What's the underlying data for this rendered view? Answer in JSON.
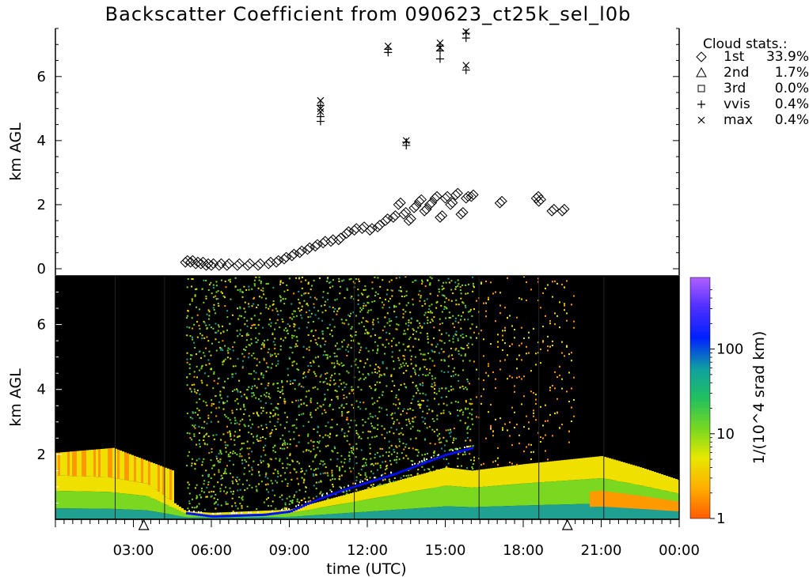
{
  "figure": {
    "title": "Backscatter Coefficient from 090623_ct25k_sel_l0b",
    "xlabel": "time (UTC)",
    "ylabel_top": "km AGL",
    "ylabel_bottom": "km AGL",
    "colorbar_label": "1/(10^4 srad km)",
    "x_tick_labels": [
      "03:00",
      "06:00",
      "09:00",
      "12:00",
      "15:00",
      "18:00",
      "21:00",
      "00:00"
    ],
    "y_tick_labels": [
      "0",
      "2",
      "4",
      "6"
    ],
    "y_tick_labels_bottom": [
      "2",
      "4",
      "6"
    ],
    "colorbar_tick_labels": [
      "1",
      "10",
      "100"
    ]
  },
  "legend": {
    "title": "Cloud stats.:",
    "entries": [
      {
        "symbol": "diamond-icon",
        "name": "1st",
        "value": "33.9%"
      },
      {
        "symbol": "triangle-icon",
        "name": "2nd",
        "value": "1.7%"
      },
      {
        "symbol": "square-icon",
        "name": "3rd",
        "value": "0.0%"
      },
      {
        "symbol": "plus-icon",
        "name": "vvis",
        "value": "0.4%"
      },
      {
        "symbol": "cross-icon",
        "name": "max",
        "value": "0.4%"
      }
    ]
  },
  "chart_data": [
    {
      "type": "scatter",
      "title": "Backscatter Coefficient from 090623_ct25k_sel_l0b",
      "xlabel": "",
      "ylabel": "km AGL",
      "x_unit": "hours UTC",
      "xlim": [
        0,
        24
      ],
      "ylim": [
        0,
        7.5
      ],
      "series": [
        {
          "name": "1st",
          "marker": "diamond",
          "x": [
            5.0,
            5.2,
            5.4,
            5.6,
            5.8,
            6.0,
            6.3,
            6.6,
            7.0,
            7.4,
            7.8,
            8.2,
            8.5,
            8.8,
            9.1,
            9.4,
            9.7,
            10.0,
            10.3,
            10.6,
            10.9,
            11.2,
            11.5,
            11.8,
            12.1,
            12.4,
            12.7,
            13.0,
            13.2,
            13.4,
            13.6,
            13.8,
            14.0,
            14.2,
            14.4,
            14.6,
            14.8,
            15.0,
            15.2,
            15.4,
            15.6,
            15.8,
            16.0,
            17.1,
            18.5,
            18.6,
            19.1,
            19.5
          ],
          "y": [
            0.2,
            0.2,
            0.15,
            0.15,
            0.1,
            0.1,
            0.1,
            0.1,
            0.1,
            0.1,
            0.1,
            0.15,
            0.2,
            0.3,
            0.4,
            0.5,
            0.6,
            0.7,
            0.8,
            0.85,
            0.9,
            1.1,
            1.2,
            1.25,
            1.2,
            1.3,
            1.5,
            1.6,
            2.0,
            1.7,
            1.5,
            1.9,
            2.1,
            1.8,
            2.0,
            2.2,
            1.6,
            2.2,
            2.0,
            2.3,
            1.7,
            2.2,
            2.25,
            2.05,
            2.2,
            2.1,
            1.8,
            1.8
          ]
        },
        {
          "name": "2nd",
          "marker": "triangle",
          "x": [],
          "y": []
        },
        {
          "name": "3rd",
          "marker": "square",
          "x": [],
          "y": []
        },
        {
          "name": "vvis",
          "marker": "plus",
          "x": [
            10.2,
            10.2,
            10.2,
            12.8,
            12.8,
            13.5,
            13.5,
            14.8,
            14.8,
            14.8,
            15.8,
            15.8,
            15.8
          ],
          "y": [
            4.6,
            4.75,
            5.1,
            6.75,
            6.85,
            3.85,
            3.95,
            6.55,
            6.8,
            6.95,
            6.2,
            7.2,
            7.35
          ]
        },
        {
          "name": "max",
          "marker": "cross",
          "x": [
            10.2,
            10.2,
            10.2,
            12.8,
            13.5,
            14.8,
            14.8,
            15.8,
            15.8
          ],
          "y": [
            4.9,
            5.0,
            5.25,
            6.95,
            4.0,
            6.9,
            7.05,
            6.35,
            7.4
          ]
        }
      ]
    },
    {
      "type": "heatmap",
      "title": "",
      "xlabel": "time (UTC)",
      "ylabel": "km AGL",
      "x_unit": "hours UTC",
      "xlim": [
        0,
        24
      ],
      "ylim": [
        0,
        7.5
      ],
      "colorbar": {
        "label": "1/(10^4 srad km)",
        "scale": "log",
        "min": 1,
        "max": 700,
        "ticks": [
          1,
          10,
          100
        ]
      },
      "background_color": "#000000",
      "colors": {
        "low": "#ff5a00",
        "orange": "#ff9900",
        "yellow": "#f0e000",
        "green": "#7ad820",
        "teal": "#1fa090",
        "blue": "#0010ff",
        "purple": "#a040ff",
        "white": "#ffffff"
      },
      "features": [
        {
          "name": "boundary layer top",
          "x": [
            0,
            2,
            3.5,
            5.0,
            6.0,
            9.0,
            12.0,
            15.0,
            16.0,
            18.0,
            21.0,
            22.5,
            24.0
          ],
          "y": [
            1.35,
            1.3,
            1.1,
            0.25,
            0.2,
            0.3,
            0.95,
            1.6,
            1.5,
            1.7,
            1.95,
            1.6,
            1.2
          ]
        },
        {
          "name": "residual layer top",
          "x": [
            0,
            2.2,
            4.5
          ],
          "y": [
            2.05,
            2.2,
            1.5
          ]
        },
        {
          "name": "cloud base (blue)",
          "x": [
            5.0,
            6.0,
            8.0,
            9.0,
            10.0,
            11.0,
            12.0,
            13.0,
            14.0,
            15.0,
            16.0
          ],
          "y": [
            0.2,
            0.1,
            0.15,
            0.25,
            0.6,
            0.9,
            1.15,
            1.4,
            1.7,
            2.0,
            2.2
          ]
        },
        {
          "name": "noise region",
          "x": [
            5.0,
            16.0
          ],
          "y": [
            0,
            7.5
          ]
        }
      ],
      "markers": [
        {
          "type": "triangle",
          "x": 3.4,
          "label": ""
        },
        {
          "type": "triangle",
          "x": 19.7,
          "label": ""
        }
      ]
    }
  ]
}
